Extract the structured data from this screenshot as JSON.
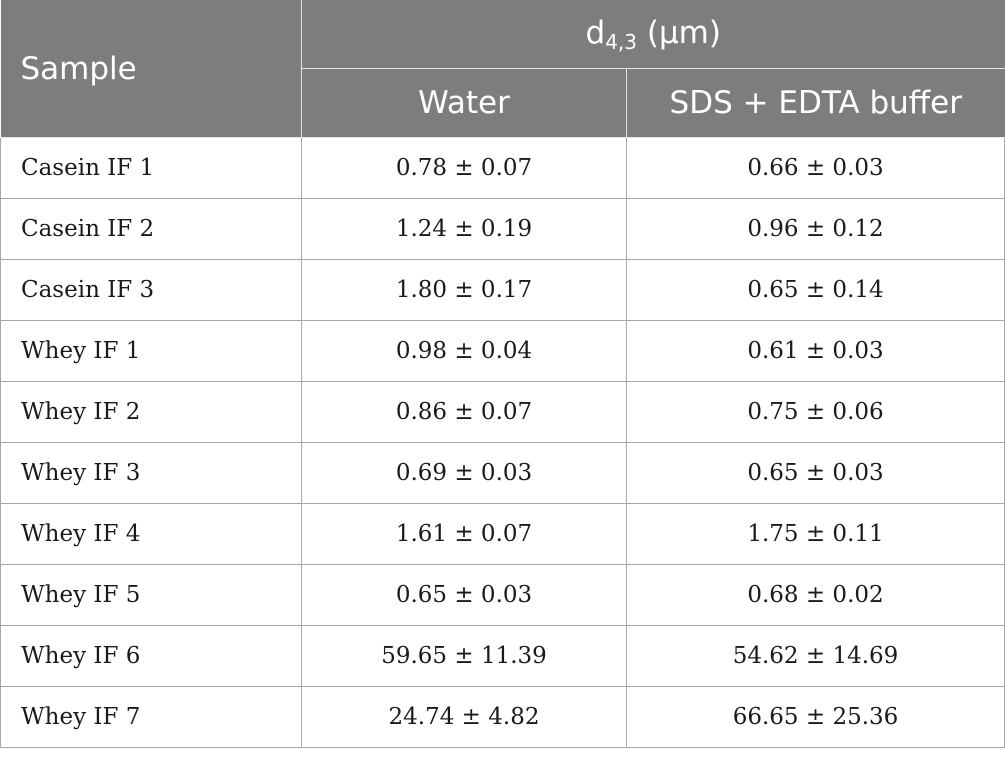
{
  "header": {
    "sample": "Sample",
    "measure_main": "d",
    "measure_sub": "4,3",
    "measure_unit": " (µm)",
    "col_water": "Water",
    "col_buffer": "SDS + EDTA buffer"
  },
  "rows": [
    {
      "sample": "Casein IF 1",
      "water": "0.78 ± 0.07",
      "buffer": "0.66 ± 0.03"
    },
    {
      "sample": "Casein IF 2",
      "water": "1.24 ± 0.19",
      "buffer": "0.96 ± 0.12"
    },
    {
      "sample": "Casein IF 3",
      "water": "1.80 ± 0.17",
      "buffer": "0.65 ± 0.14"
    },
    {
      "sample": "Whey IF 1",
      "water": "0.98 ± 0.04",
      "buffer": "0.61 ± 0.03"
    },
    {
      "sample": "Whey IF 2",
      "water": "0.86 ± 0.07",
      "buffer": "0.75 ± 0.06"
    },
    {
      "sample": "Whey IF 3",
      "water": "0.69 ± 0.03",
      "buffer": "0.65 ± 0.03"
    },
    {
      "sample": "Whey IF 4",
      "water": "1.61 ± 0.07",
      "buffer": "1.75 ± 0.11"
    },
    {
      "sample": "Whey IF 5",
      "water": "0.65 ± 0.03",
      "buffer": "0.68 ± 0.02"
    },
    {
      "sample": "Whey IF 6",
      "water": "59.65 ± 11.39",
      "buffer": "54.62 ± 14.69"
    },
    {
      "sample": "Whey IF 7",
      "water": "24.74 ± 4.82",
      "buffer": "66.65 ± 25.36"
    }
  ]
}
